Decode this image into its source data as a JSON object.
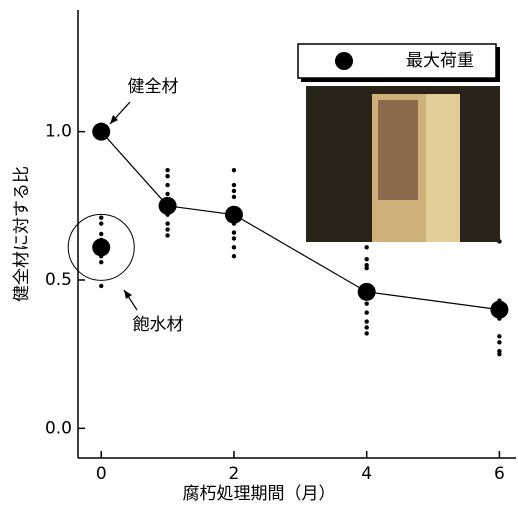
{
  "chart_data": {
    "type": "line",
    "x_label": "腐朽処理期間（月）",
    "y_label": "健全材に対する比",
    "xlim": [
      -0.35,
      6.25
    ],
    "ylim": [
      -0.1,
      1.41
    ],
    "xticks": [
      0,
      2,
      4,
      6
    ],
    "yticks": [
      {
        "value": 0,
        "label": "0.0"
      },
      {
        "value": 0.5,
        "label": "0.5"
      },
      {
        "value": 1,
        "label": "1.0"
      }
    ],
    "legend": "upper right",
    "series": [
      {
        "name": "最大荷重",
        "color": "#000000",
        "x": [
          0,
          1,
          2,
          4,
          6
        ],
        "values": [
          1.0,
          0.75,
          0.72,
          0.46,
          0.4
        ]
      }
    ],
    "saturated": {
      "label": "飽水材",
      "x": 0,
      "value": 0.61
    },
    "healthy_label": "健全材",
    "specimens": [
      {
        "x": 0,
        "values": [
          0.71,
          0.69,
          0.655,
          0.635,
          0.58,
          0.56,
          0.48
        ]
      },
      {
        "x": 1,
        "values": [
          0.87,
          0.85,
          0.82,
          0.79,
          0.77,
          0.74,
          0.72,
          0.69,
          0.67,
          0.65
        ]
      },
      {
        "x": 2,
        "values": [
          0.87,
          0.82,
          0.8,
          0.78,
          0.74,
          0.71,
          0.69,
          0.66,
          0.64,
          0.61,
          0.58
        ]
      },
      {
        "x": 4,
        "values": [
          0.61,
          0.57,
          0.55,
          0.54,
          0.45,
          0.42,
          0.39,
          0.36,
          0.34,
          0.32
        ]
      },
      {
        "x": 6,
        "values": [
          0.63,
          0.43,
          0.41,
          0.39,
          0.37,
          0.31,
          0.29,
          0.26,
          0.25
        ]
      }
    ]
  }
}
